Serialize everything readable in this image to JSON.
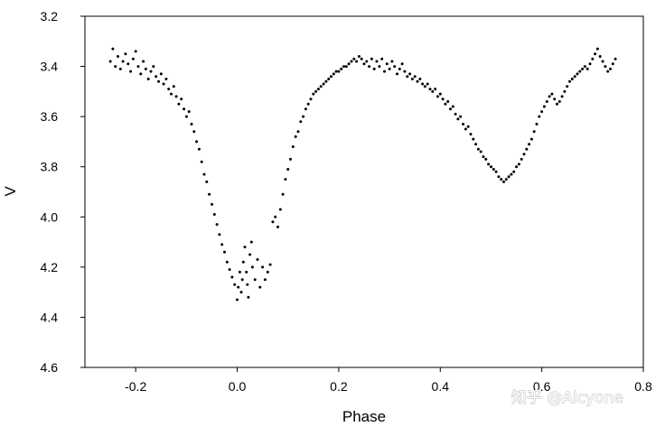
{
  "chart_data": {
    "type": "scatter",
    "title": "",
    "xlabel": "Phase",
    "ylabel": "V",
    "xlim": [
      -0.3,
      0.8
    ],
    "ylim": [
      3.2,
      4.6
    ],
    "y_inverted": true,
    "grid": false,
    "xticks": [
      -0.2,
      0.0,
      0.2,
      0.4,
      0.6,
      0.8
    ],
    "xtick_labels": [
      "-0.2",
      "0.0",
      "0.2",
      "0.4",
      "0.6",
      "0.8"
    ],
    "yticks": [
      3.2,
      3.4,
      3.6,
      3.8,
      4.0,
      4.2,
      4.4,
      4.6
    ],
    "ytick_labels": [
      "3.2",
      "3.4",
      "3.6",
      "3.8",
      "4.0",
      "4.2",
      "4.4",
      "4.6"
    ],
    "marker_color": "#000000",
    "points": [
      [
        -0.25,
        3.38
      ],
      [
        -0.245,
        3.33
      ],
      [
        -0.24,
        3.4
      ],
      [
        -0.235,
        3.36
      ],
      [
        -0.23,
        3.41
      ],
      [
        -0.225,
        3.38
      ],
      [
        -0.22,
        3.35
      ],
      [
        -0.215,
        3.39
      ],
      [
        -0.21,
        3.42
      ],
      [
        -0.205,
        3.37
      ],
      [
        -0.2,
        3.34
      ],
      [
        -0.195,
        3.4
      ],
      [
        -0.19,
        3.43
      ],
      [
        -0.185,
        3.38
      ],
      [
        -0.18,
        3.41
      ],
      [
        -0.175,
        3.45
      ],
      [
        -0.17,
        3.42
      ],
      [
        -0.165,
        3.4
      ],
      [
        -0.16,
        3.44
      ],
      [
        -0.155,
        3.46
      ],
      [
        -0.15,
        3.43
      ],
      [
        -0.145,
        3.47
      ],
      [
        -0.14,
        3.45
      ],
      [
        -0.135,
        3.49
      ],
      [
        -0.13,
        3.51
      ],
      [
        -0.125,
        3.48
      ],
      [
        -0.12,
        3.52
      ],
      [
        -0.115,
        3.55
      ],
      [
        -0.11,
        3.53
      ],
      [
        -0.105,
        3.57
      ],
      [
        -0.1,
        3.6
      ],
      [
        -0.095,
        3.58
      ],
      [
        -0.09,
        3.63
      ],
      [
        -0.085,
        3.66
      ],
      [
        -0.08,
        3.7
      ],
      [
        -0.075,
        3.73
      ],
      [
        -0.07,
        3.78
      ],
      [
        -0.065,
        3.83
      ],
      [
        -0.06,
        3.86
      ],
      [
        -0.055,
        3.91
      ],
      [
        -0.05,
        3.95
      ],
      [
        -0.045,
        3.99
      ],
      [
        -0.04,
        4.03
      ],
      [
        -0.035,
        4.07
      ],
      [
        -0.03,
        4.11
      ],
      [
        -0.025,
        4.14
      ],
      [
        -0.02,
        4.18
      ],
      [
        -0.015,
        4.21
      ],
      [
        -0.01,
        4.24
      ],
      [
        -0.005,
        4.27
      ],
      [
        0.0,
        4.33
      ],
      [
        0.002,
        4.28
      ],
      [
        0.005,
        4.22
      ],
      [
        0.008,
        4.3
      ],
      [
        0.01,
        4.25
      ],
      [
        0.012,
        4.18
      ],
      [
        0.015,
        4.12
      ],
      [
        0.018,
        4.22
      ],
      [
        0.02,
        4.27
      ],
      [
        0.022,
        4.32
      ],
      [
        0.025,
        4.15
      ],
      [
        0.028,
        4.1
      ],
      [
        0.03,
        4.2
      ],
      [
        0.035,
        4.25
      ],
      [
        0.04,
        4.17
      ],
      [
        0.045,
        4.28
      ],
      [
        0.05,
        4.2
      ],
      [
        0.055,
        4.25
      ],
      [
        0.06,
        4.22
      ],
      [
        0.065,
        4.19
      ],
      [
        0.07,
        4.02
      ],
      [
        0.075,
        4.0
      ],
      [
        0.08,
        4.04
      ],
      [
        0.085,
        3.97
      ],
      [
        0.09,
        3.91
      ],
      [
        0.095,
        3.85
      ],
      [
        0.1,
        3.81
      ],
      [
        0.105,
        3.77
      ],
      [
        0.11,
        3.72
      ],
      [
        0.115,
        3.68
      ],
      [
        0.12,
        3.66
      ],
      [
        0.125,
        3.62
      ],
      [
        0.13,
        3.6
      ],
      [
        0.135,
        3.57
      ],
      [
        0.14,
        3.55
      ],
      [
        0.145,
        3.53
      ],
      [
        0.15,
        3.51
      ],
      [
        0.155,
        3.5
      ],
      [
        0.16,
        3.49
      ],
      [
        0.165,
        3.48
      ],
      [
        0.17,
        3.47
      ],
      [
        0.175,
        3.46
      ],
      [
        0.18,
        3.45
      ],
      [
        0.185,
        3.44
      ],
      [
        0.19,
        3.43
      ],
      [
        0.195,
        3.42
      ],
      [
        0.2,
        3.42
      ],
      [
        0.205,
        3.41
      ],
      [
        0.21,
        3.4
      ],
      [
        0.215,
        3.4
      ],
      [
        0.22,
        3.39
      ],
      [
        0.225,
        3.38
      ],
      [
        0.23,
        3.37
      ],
      [
        0.235,
        3.38
      ],
      [
        0.24,
        3.36
      ],
      [
        0.245,
        3.37
      ],
      [
        0.25,
        3.39
      ],
      [
        0.255,
        3.38
      ],
      [
        0.26,
        3.4
      ],
      [
        0.265,
        3.37
      ],
      [
        0.27,
        3.41
      ],
      [
        0.275,
        3.38
      ],
      [
        0.28,
        3.4
      ],
      [
        0.285,
        3.37
      ],
      [
        0.29,
        3.42
      ],
      [
        0.295,
        3.39
      ],
      [
        0.3,
        3.41
      ],
      [
        0.305,
        3.38
      ],
      [
        0.31,
        3.4
      ],
      [
        0.315,
        3.43
      ],
      [
        0.32,
        3.41
      ],
      [
        0.325,
        3.39
      ],
      [
        0.33,
        3.42
      ],
      [
        0.335,
        3.44
      ],
      [
        0.34,
        3.43
      ],
      [
        0.345,
        3.45
      ],
      [
        0.35,
        3.44
      ],
      [
        0.355,
        3.46
      ],
      [
        0.36,
        3.45
      ],
      [
        0.365,
        3.47
      ],
      [
        0.37,
        3.48
      ],
      [
        0.375,
        3.47
      ],
      [
        0.38,
        3.49
      ],
      [
        0.385,
        3.5
      ],
      [
        0.39,
        3.49
      ],
      [
        0.395,
        3.52
      ],
      [
        0.4,
        3.51
      ],
      [
        0.405,
        3.53
      ],
      [
        0.41,
        3.55
      ],
      [
        0.415,
        3.54
      ],
      [
        0.42,
        3.57
      ],
      [
        0.425,
        3.56
      ],
      [
        0.43,
        3.59
      ],
      [
        0.435,
        3.61
      ],
      [
        0.44,
        3.6
      ],
      [
        0.445,
        3.63
      ],
      [
        0.45,
        3.65
      ],
      [
        0.455,
        3.64
      ],
      [
        0.46,
        3.67
      ],
      [
        0.465,
        3.69
      ],
      [
        0.47,
        3.71
      ],
      [
        0.475,
        3.73
      ],
      [
        0.48,
        3.74
      ],
      [
        0.485,
        3.76
      ],
      [
        0.49,
        3.77
      ],
      [
        0.495,
        3.79
      ],
      [
        0.5,
        3.8
      ],
      [
        0.505,
        3.81
      ],
      [
        0.51,
        3.82
      ],
      [
        0.515,
        3.84
      ],
      [
        0.52,
        3.85
      ],
      [
        0.525,
        3.86
      ],
      [
        0.53,
        3.85
      ],
      [
        0.535,
        3.84
      ],
      [
        0.54,
        3.83
      ],
      [
        0.545,
        3.82
      ],
      [
        0.55,
        3.8
      ],
      [
        0.555,
        3.79
      ],
      [
        0.56,
        3.77
      ],
      [
        0.565,
        3.75
      ],
      [
        0.57,
        3.73
      ],
      [
        0.575,
        3.71
      ],
      [
        0.58,
        3.69
      ],
      [
        0.585,
        3.66
      ],
      [
        0.59,
        3.63
      ],
      [
        0.595,
        3.6
      ],
      [
        0.6,
        3.58
      ],
      [
        0.605,
        3.56
      ],
      [
        0.61,
        3.54
      ],
      [
        0.615,
        3.52
      ],
      [
        0.62,
        3.51
      ],
      [
        0.625,
        3.53
      ],
      [
        0.63,
        3.55
      ],
      [
        0.635,
        3.54
      ],
      [
        0.64,
        3.52
      ],
      [
        0.645,
        3.5
      ],
      [
        0.65,
        3.48
      ],
      [
        0.655,
        3.46
      ],
      [
        0.66,
        3.45
      ],
      [
        0.665,
        3.44
      ],
      [
        0.67,
        3.43
      ],
      [
        0.675,
        3.42
      ],
      [
        0.68,
        3.41
      ],
      [
        0.685,
        3.4
      ],
      [
        0.69,
        3.41
      ],
      [
        0.695,
        3.39
      ],
      [
        0.7,
        3.37
      ],
      [
        0.705,
        3.35
      ],
      [
        0.71,
        3.33
      ],
      [
        0.715,
        3.36
      ],
      [
        0.72,
        3.38
      ],
      [
        0.725,
        3.4
      ],
      [
        0.73,
        3.42
      ],
      [
        0.735,
        3.41
      ],
      [
        0.74,
        3.39
      ],
      [
        0.745,
        3.37
      ]
    ]
  },
  "watermark": {
    "text": "知乎 @Alcyone"
  }
}
